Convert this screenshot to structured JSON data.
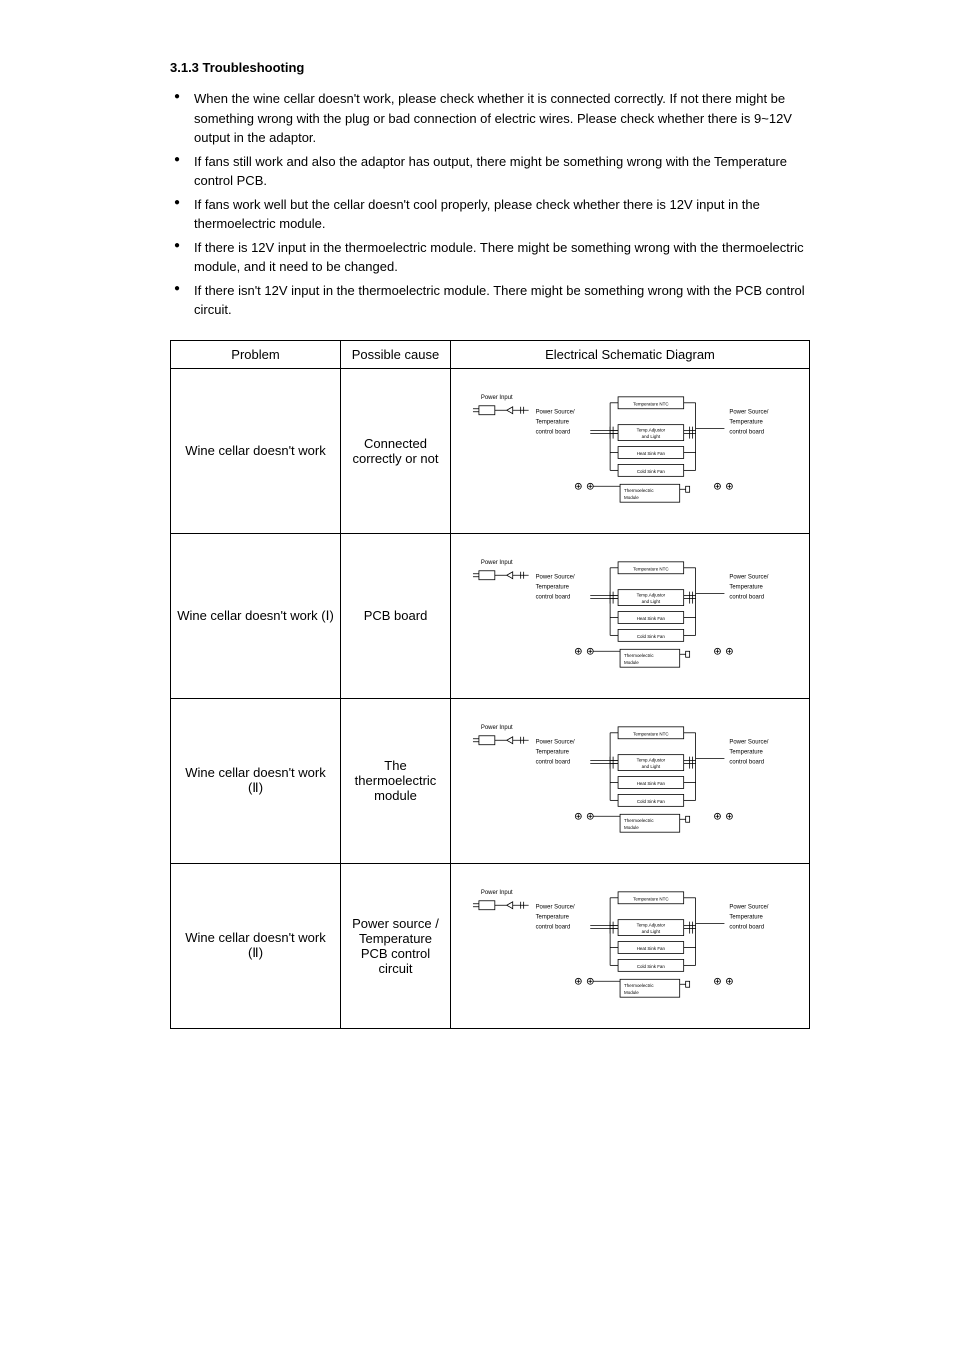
{
  "heading": "3.1.3 Troubleshooting",
  "bullets": [
    "When the wine cellar doesn't work, please check whether it is connected correctly. If not there might be something wrong with the plug or bad connection of electric wires. Please check whether there is 9~12V output in the adaptor.",
    "If fans still work and also the adaptor has output, there might be something wrong with the Temperature control PCB.",
    "If fans work well but the cellar doesn't cool properly, please check whether there is 12V input in the thermoelectric module.",
    "If there is 12V input in the thermoelectric module. There might be something wrong with the thermoelectric module, and it need to be changed.",
    "If there isn't 12V input in the thermoelectric module. There might be something wrong with the PCB control circuit."
  ],
  "table": {
    "header": {
      "col1": "Problem",
      "col2": "Possible cause",
      "col3": "Electrical Schematic Diagram"
    },
    "problems": [
      {
        "col1": "Wine cellar doesn't work",
        "col2": "Connected correctly or not"
      },
      {
        "col1": "Wine cellar doesn't work (Ⅰ)",
        "col2": "PCB board"
      },
      {
        "col1": "Wine cellar doesn't work (Ⅱ)",
        "col2": "The thermoelectric module"
      },
      {
        "col1": "Wine cellar doesn't work (Ⅱ)",
        "col2": "Power source / Temperature PCB control circuit"
      }
    ]
  },
  "diagram": {
    "power_input": "Power Input",
    "power_board_line1": "Power Source/",
    "power_board_line2": "Temperature",
    "power_board_line3": "control board",
    "temp_ntc": "Temperature NTC",
    "temp_adj_line1": "Temp.Adjustor",
    "temp_adj_line2": "and Light",
    "heat_sink_fan": "Heat Sink Fan",
    "cold_sink_fan": "Cold Sink Fan",
    "thermo_line1": "Thermoelectric",
    "thermo_line2": "Module",
    "stroke": "#000",
    "text_color": "#000",
    "font_main": 6,
    "font_small": 4.5
  }
}
